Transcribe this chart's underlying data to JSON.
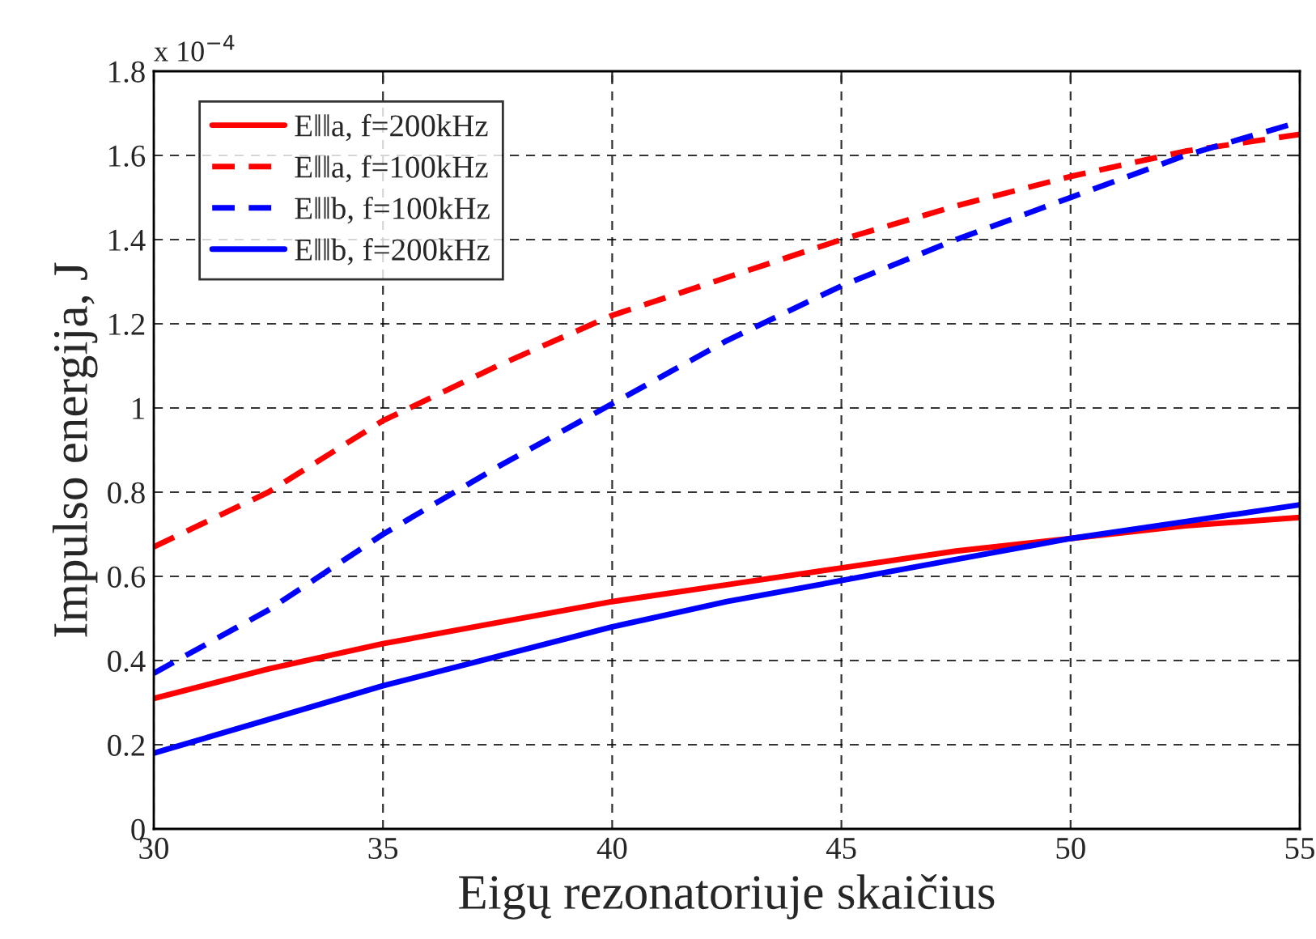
{
  "chart_data": {
    "type": "line",
    "xlabel": "Eigų rezonatoriuje skaičius",
    "ylabel": "Impulso energija, J",
    "annotations": [
      "x 10$^{−4}$"
    ],
    "x": [
      30,
      32.5,
      35,
      37.5,
      40,
      42.5,
      45,
      47.5,
      50,
      52.5,
      55
    ],
    "series": [
      {
        "name": "E‖‖a, f=200kHz",
        "color": "#ff0000",
        "line_style": "solid",
        "values": [
          0.31,
          0.38,
          0.44,
          0.49,
          0.54,
          0.58,
          0.62,
          0.66,
          0.69,
          0.72,
          0.74
        ]
      },
      {
        "name": "E‖‖a, f=100kHz",
        "color": "#ff0000",
        "line_style": "dashed",
        "values": [
          0.67,
          0.8,
          0.97,
          1.1,
          1.22,
          1.31,
          1.4,
          1.48,
          1.55,
          1.61,
          1.65
        ]
      },
      {
        "name": "E‖‖b, f=100kHz",
        "color": "#0000ff",
        "line_style": "dashed",
        "values": [
          0.37,
          0.52,
          0.7,
          0.86,
          1.01,
          1.16,
          1.29,
          1.4,
          1.5,
          1.6,
          1.68
        ]
      },
      {
        "name": "E‖‖b, f=200kHz",
        "color": "#0000ff",
        "line_style": "solid",
        "values": [
          0.18,
          0.26,
          0.34,
          0.41,
          0.48,
          0.54,
          0.59,
          0.64,
          0.69,
          0.73,
          0.77
        ]
      }
    ],
    "xlim": [
      30,
      55
    ],
    "xticks": [
      30,
      35,
      40,
      45,
      50,
      55
    ],
    "ylim": [
      0,
      1.8
    ],
    "yticks": [
      0,
      0.2,
      0.4,
      0.6,
      0.8,
      1,
      1.2,
      1.4,
      1.6,
      1.8
    ],
    "grid": true,
    "legend": "top left"
  }
}
